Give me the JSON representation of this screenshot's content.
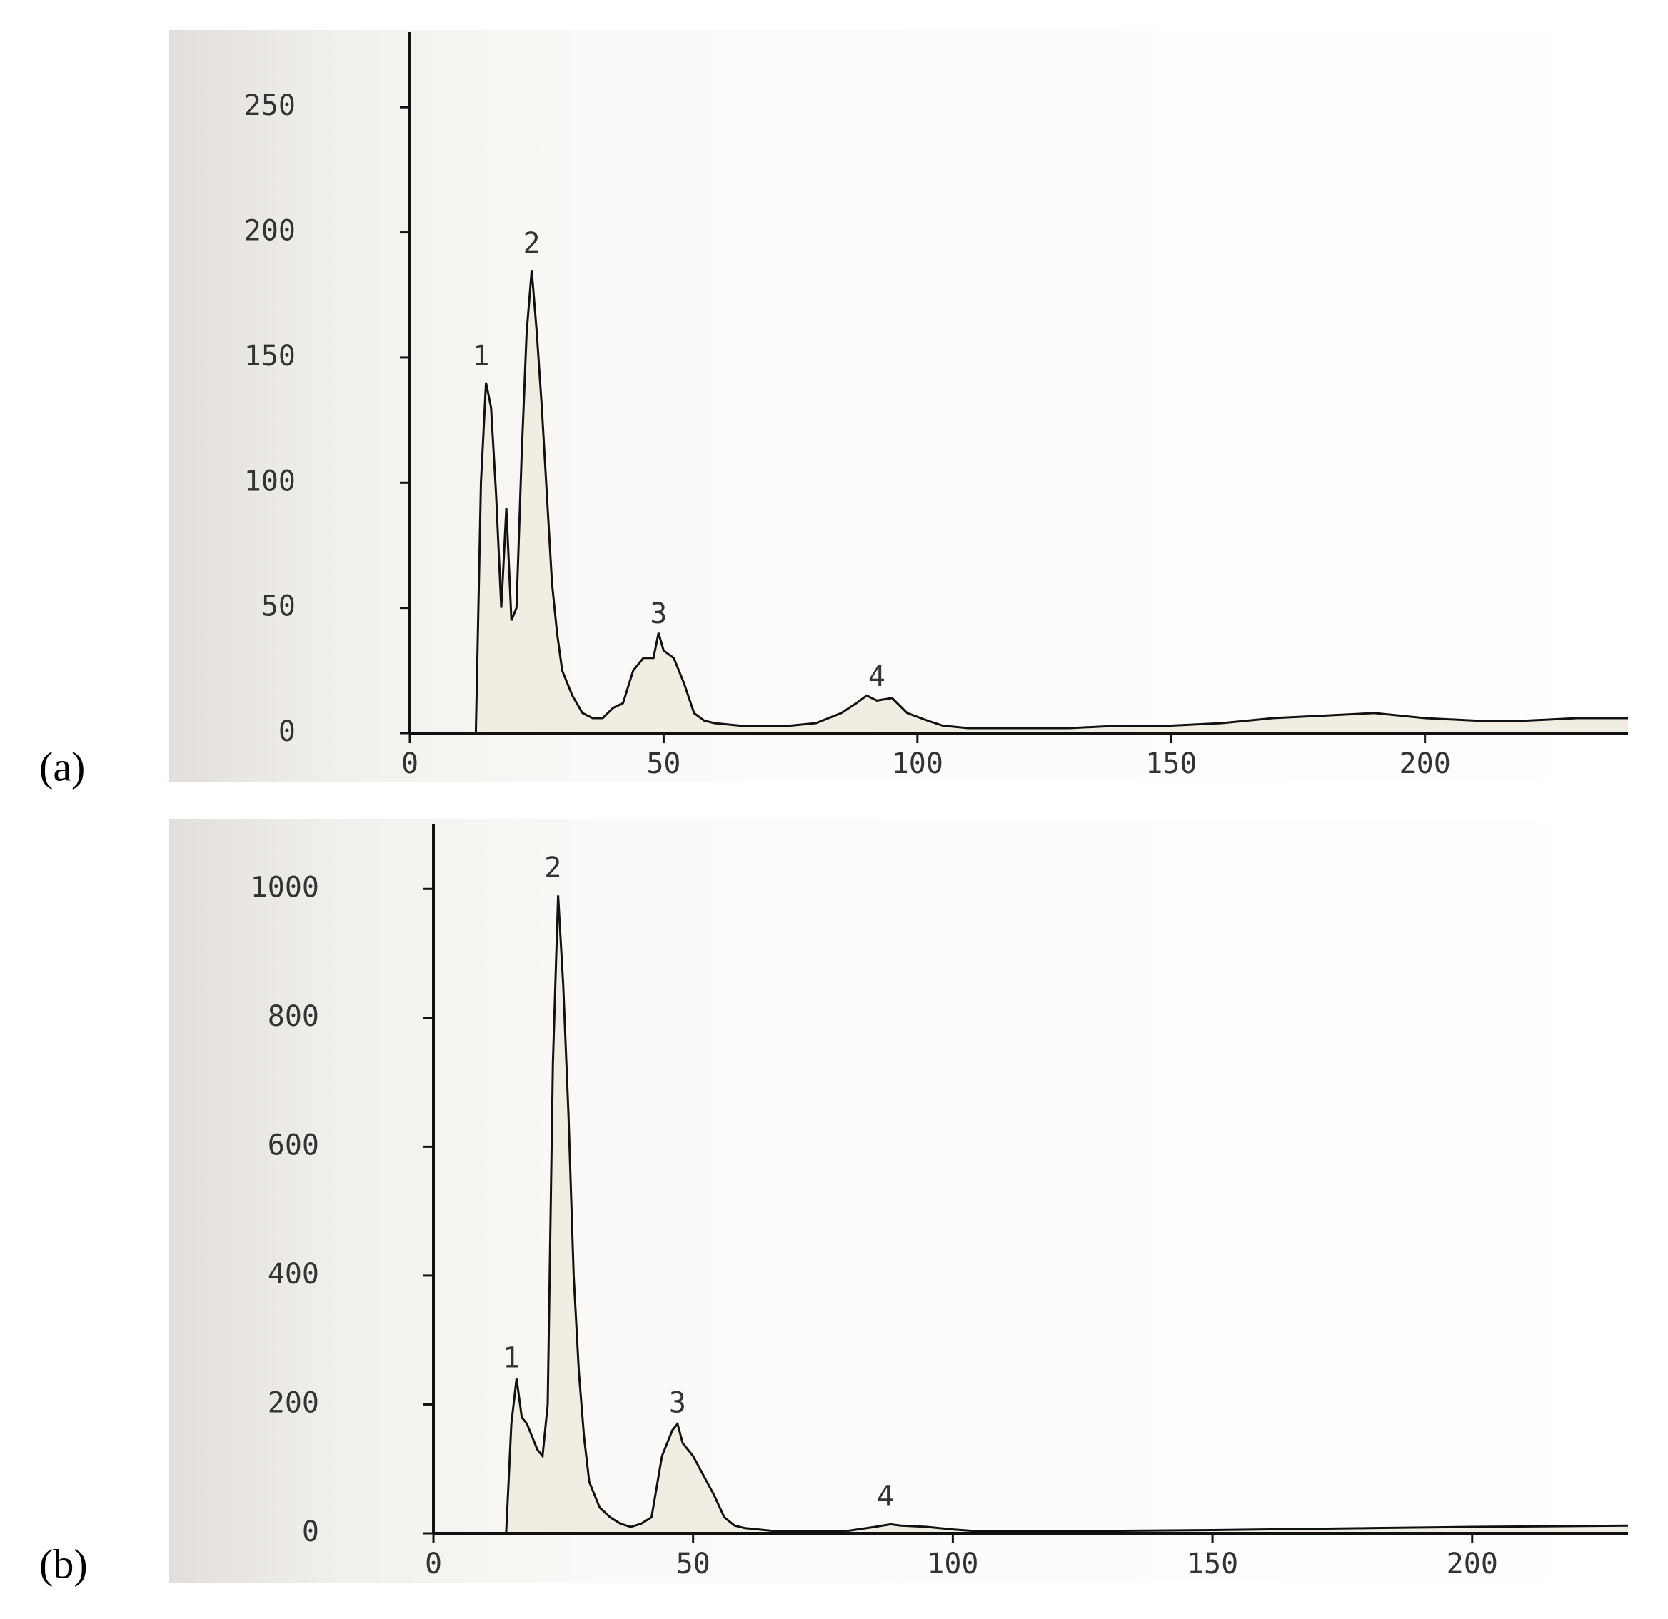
{
  "chart_data": [
    {
      "type": "line",
      "panel_label": "(a)",
      "x": [
        0,
        10,
        13,
        14,
        15,
        16,
        17,
        18,
        19,
        20,
        21,
        22,
        23,
        24,
        25,
        26,
        27,
        28,
        29,
        30,
        32,
        34,
        36,
        38,
        40,
        42,
        44,
        46,
        48,
        49,
        50,
        52,
        54,
        56,
        58,
        60,
        65,
        70,
        75,
        80,
        85,
        88,
        90,
        92,
        95,
        98,
        102,
        105,
        110,
        120,
        130,
        140,
        150,
        160,
        170,
        180,
        190,
        200,
        210,
        220,
        230,
        240
      ],
      "values": [
        0,
        0,
        0,
        100,
        140,
        130,
        95,
        50,
        90,
        45,
        50,
        110,
        160,
        185,
        160,
        130,
        95,
        60,
        40,
        25,
        15,
        8,
        6,
        6,
        10,
        12,
        25,
        30,
        30,
        40,
        33,
        30,
        20,
        8,
        5,
        4,
        3,
        3,
        3,
        4,
        8,
        12,
        15,
        13,
        14,
        8,
        5,
        3,
        2,
        2,
        2,
        3,
        3,
        4,
        6,
        7,
        8,
        6,
        5,
        5,
        6,
        6
      ],
      "color": "#111111",
      "xlim": [
        0,
        240
      ],
      "ylim": [
        0,
        280
      ],
      "xticks": [
        0,
        50,
        100,
        150,
        200
      ],
      "yticks": [
        0,
        50,
        100,
        150,
        200,
        250
      ],
      "annotations": [
        {
          "text": "1",
          "x": 14,
          "y": 150
        },
        {
          "text": "2",
          "x": 24,
          "y": 195
        },
        {
          "text": "3",
          "x": 49,
          "y": 47
        },
        {
          "text": "4",
          "x": 92,
          "y": 22
        }
      ]
    },
    {
      "type": "line",
      "panel_label": "(b)",
      "x": [
        0,
        14,
        15,
        16,
        17,
        18,
        19,
        20,
        21,
        22,
        23,
        24,
        25,
        26,
        27,
        28,
        29,
        30,
        32,
        34,
        36,
        38,
        40,
        42,
        44,
        46,
        47,
        48,
        50,
        52,
        54,
        56,
        58,
        60,
        65,
        70,
        80,
        85,
        88,
        90,
        95,
        100,
        105,
        120,
        150,
        180,
        200,
        230
      ],
      "values": [
        0,
        0,
        170,
        240,
        180,
        170,
        150,
        130,
        120,
        200,
        730,
        990,
        850,
        650,
        400,
        250,
        150,
        80,
        40,
        25,
        15,
        10,
        15,
        25,
        120,
        160,
        170,
        140,
        120,
        90,
        60,
        25,
        12,
        8,
        4,
        3,
        4,
        10,
        14,
        12,
        10,
        6,
        3,
        3,
        5,
        8,
        10,
        12
      ],
      "color": "#111111",
      "xlim": [
        0,
        230
      ],
      "ylim": [
        0,
        1100
      ],
      "xticks": [
        0,
        50,
        100,
        150,
        200
      ],
      "yticks": [
        0,
        200,
        400,
        600,
        800,
        1000
      ],
      "annotations": [
        {
          "text": "1",
          "x": 15,
          "y": 270
        },
        {
          "text": "2",
          "x": 23,
          "y": 1030
        },
        {
          "text": "3",
          "x": 47,
          "y": 200
        },
        {
          "text": "4",
          "x": 87,
          "y": 55
        }
      ]
    }
  ]
}
